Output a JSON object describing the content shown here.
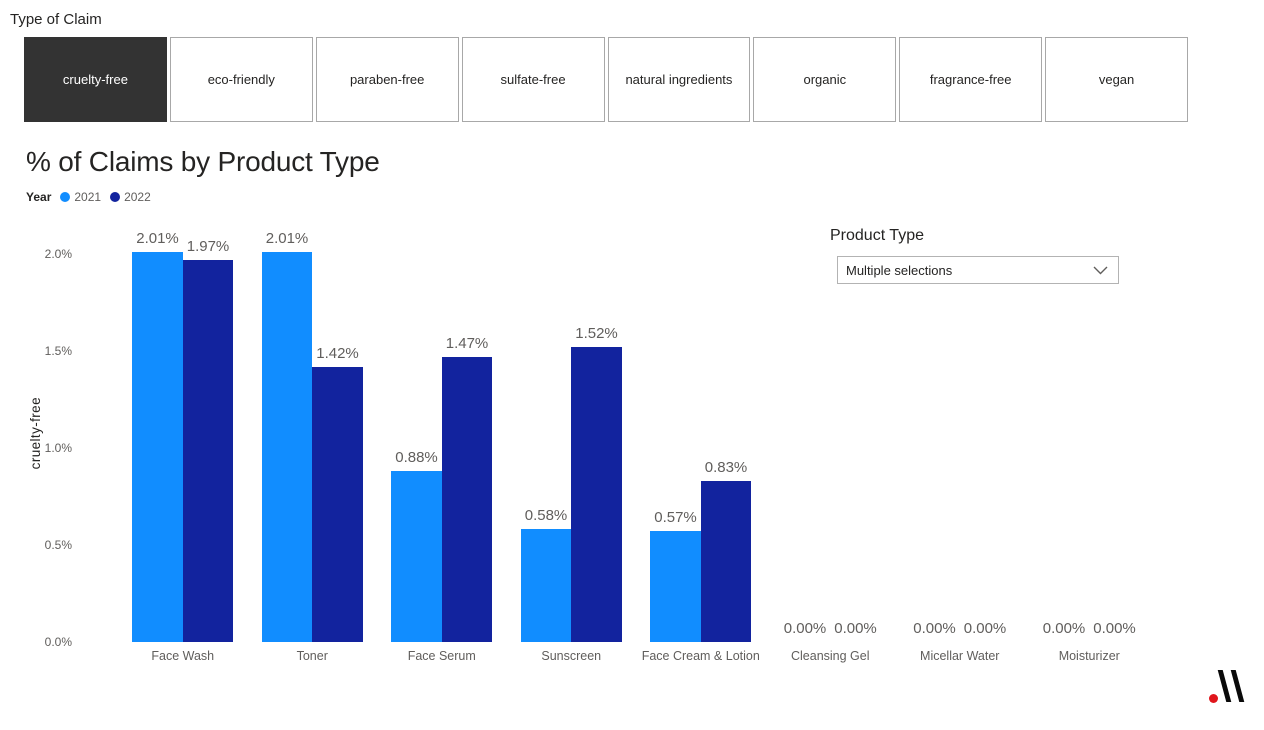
{
  "filter": {
    "title": "Type of Claim",
    "options": [
      "cruelty-free",
      "eco-friendly",
      "paraben-free",
      "sulfate-free",
      "natural ingredients",
      "organic",
      "fragrance-free",
      "vegan"
    ],
    "selected": "cruelty-free"
  },
  "chart_data": {
    "type": "bar",
    "title": "% of Claims by Product Type",
    "legend_title": "Year",
    "legend_position": "top-left",
    "categories": [
      "Face Wash",
      "Toner",
      "Face Serum",
      "Sunscreen",
      "Face Cream & Lotion",
      "Cleansing Gel",
      "Micellar Water",
      "Moisturizer"
    ],
    "series": [
      {
        "name": "2021",
        "color": "#118DFF",
        "values": [
          2.01,
          2.01,
          0.88,
          0.58,
          0.57,
          0.0,
          0.0,
          0.0
        ]
      },
      {
        "name": "2022",
        "color": "#12239E",
        "values": [
          1.97,
          1.42,
          1.47,
          1.52,
          0.83,
          0.0,
          0.0,
          0.0
        ]
      }
    ],
    "data_label_format": "0.00%",
    "ylabel": "cruelty-free",
    "yticks": [
      "0.0%",
      "0.5%",
      "1.0%",
      "1.5%",
      "2.0%"
    ],
    "ylim": [
      0,
      2.15
    ],
    "grid": false
  },
  "product_type": {
    "label": "Product Type",
    "value": "Multiple selections"
  },
  "colors": {
    "selected_filter_bg": "#333333",
    "logo_dot": "#E0161C",
    "logo_strokes": "#0A0A0A"
  }
}
